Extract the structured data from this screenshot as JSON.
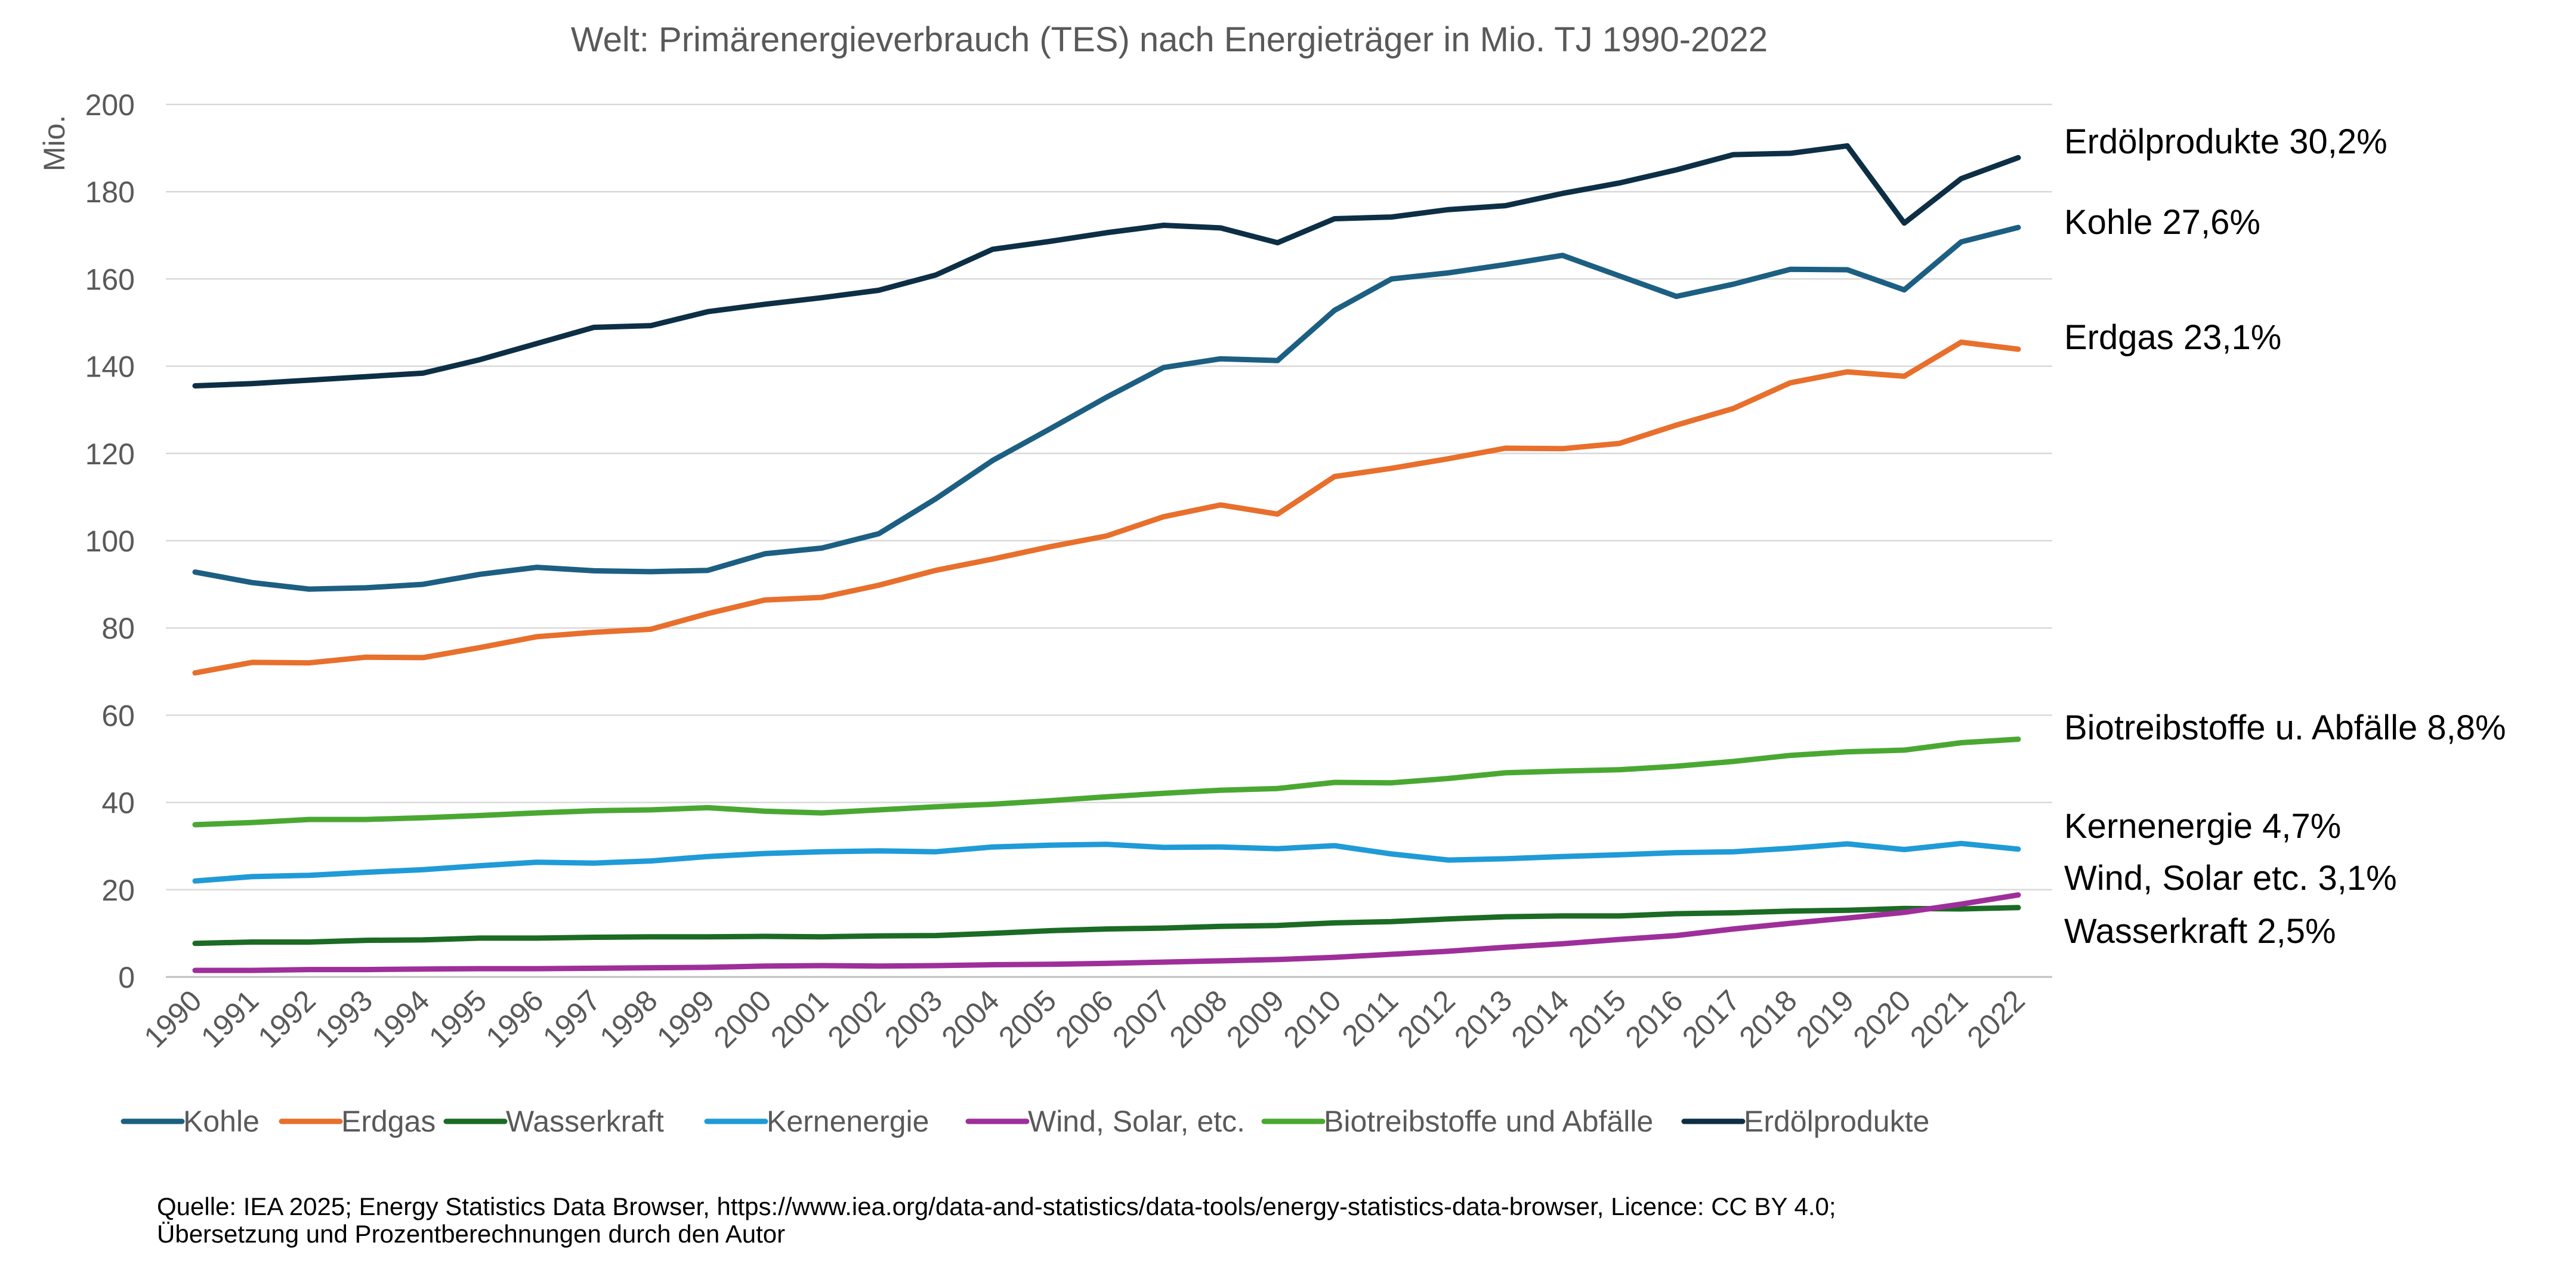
{
  "chart_data": {
    "type": "line",
    "title": "Welt: Primärenergieverbrauch (TES) nach Energieträger in Mio. TJ 1990-2022",
    "ylabel": "Mio.",
    "xlabel": "",
    "ylim": [
      0,
      200
    ],
    "yticks": [
      "0",
      "20",
      "40",
      "60",
      "80",
      "100",
      "120",
      "140",
      "160",
      "180",
      "200"
    ],
    "grid": true,
    "legend_position": "bottom",
    "x": [
      "1990",
      "1991",
      "1992",
      "1993",
      "1994",
      "1995",
      "1996",
      "1997",
      "1998",
      "1999",
      "2000",
      "2001",
      "2002",
      "2003",
      "2004",
      "2005",
      "2006",
      "2007",
      "2008",
      "2009",
      "2010",
      "2011",
      "2012",
      "2013",
      "2014",
      "2015",
      "2016",
      "2017",
      "2018",
      "2019",
      "2020",
      "2021",
      "2022"
    ],
    "series": [
      {
        "name": "Kohle",
        "color": "#1c5f82",
        "values": [
          92.8,
          90.4,
          88.9,
          89.2,
          90.0,
          92.3,
          93.9,
          93.1,
          92.9,
          93.2,
          97.0,
          98.3,
          101.6,
          109.6,
          118.4,
          125.6,
          132.9,
          139.7,
          141.7,
          141.3,
          152.8,
          160.0,
          161.4,
          163.3,
          165.4,
          160.7,
          156.0,
          158.8,
          162.2,
          162.1,
          157.5,
          168.5,
          171.8
        ]
      },
      {
        "name": "Erdgas",
        "color": "#e86f2c",
        "values": [
          69.7,
          72.1,
          72.0,
          73.3,
          73.2,
          75.5,
          78.0,
          79.0,
          79.7,
          83.3,
          86.4,
          87.0,
          89.8,
          93.2,
          95.8,
          98.6,
          101.1,
          105.5,
          108.2,
          106.1,
          114.7,
          116.6,
          118.8,
          121.2,
          121.1,
          122.3,
          126.5,
          130.3,
          136.2,
          138.7,
          137.7,
          145.5,
          143.9
        ]
      },
      {
        "name": "Wasserkraft",
        "color": "#1b6b24",
        "values": [
          7.7,
          8.0,
          8.0,
          8.4,
          8.5,
          8.9,
          8.9,
          9.1,
          9.2,
          9.2,
          9.3,
          9.2,
          9.4,
          9.5,
          10.0,
          10.6,
          11.0,
          11.2,
          11.6,
          11.8,
          12.4,
          12.7,
          13.3,
          13.8,
          14.0,
          14.0,
          14.5,
          14.7,
          15.1,
          15.3,
          15.7,
          15.6,
          15.9
        ]
      },
      {
        "name": "Kernenergie",
        "color": "#1f9bd7",
        "values": [
          22.0,
          23.0,
          23.3,
          24.0,
          24.6,
          25.5,
          26.3,
          26.1,
          26.6,
          27.6,
          28.3,
          28.7,
          28.9,
          28.7,
          29.8,
          30.2,
          30.4,
          29.7,
          29.8,
          29.4,
          30.1,
          28.2,
          26.8,
          27.1,
          27.6,
          28.0,
          28.5,
          28.7,
          29.5,
          30.5,
          29.2,
          30.6,
          29.3
        ]
      },
      {
        "name": "Wind, Solar, etc.",
        "color": "#9e2f9a",
        "values": [
          1.5,
          1.5,
          1.7,
          1.7,
          1.8,
          1.9,
          1.9,
          2.0,
          2.1,
          2.2,
          2.5,
          2.6,
          2.5,
          2.6,
          2.8,
          2.9,
          3.1,
          3.4,
          3.7,
          4.0,
          4.5,
          5.2,
          5.9,
          6.8,
          7.6,
          8.6,
          9.5,
          11.0,
          12.3,
          13.5,
          14.8,
          16.7,
          18.8
        ]
      },
      {
        "name": "Biotreibstoffe und Abfälle",
        "color": "#4aa832",
        "values": [
          34.9,
          35.4,
          36.1,
          36.1,
          36.5,
          37.0,
          37.6,
          38.1,
          38.3,
          38.8,
          38.0,
          37.6,
          38.3,
          39.0,
          39.6,
          40.4,
          41.3,
          42.1,
          42.8,
          43.2,
          44.6,
          44.5,
          45.5,
          46.8,
          47.2,
          47.5,
          48.3,
          49.4,
          50.8,
          51.6,
          52.0,
          53.7,
          54.5
        ]
      },
      {
        "name": "Erdölprodukte",
        "color": "#0d2f45",
        "values": [
          135.5,
          136.0,
          136.8,
          137.6,
          138.4,
          141.5,
          145.2,
          148.9,
          149.3,
          152.5,
          154.2,
          155.7,
          157.4,
          160.9,
          166.8,
          168.6,
          170.6,
          172.3,
          171.7,
          168.3,
          173.8,
          174.2,
          175.9,
          176.8,
          179.6,
          182.0,
          185.0,
          188.5,
          188.8,
          190.5,
          172.8,
          183.0,
          187.8
        ]
      }
    ],
    "end_labels": [
      {
        "series": "Erdölprodukte",
        "text": "Erdölprodukte 30,2%"
      },
      {
        "series": "Kohle",
        "text": "Kohle 27,6%"
      },
      {
        "series": "Erdgas",
        "text": "Erdgas 23,1%"
      },
      {
        "series": "Biotreibstoffe und Abfälle",
        "text": "Biotreibstoffe u. Abfälle 8,8%"
      },
      {
        "series": "Kernenergie",
        "text": "Kernenergie 4,7%"
      },
      {
        "series": "Wind, Solar, etc.",
        "text": "Wind, Solar etc. 3,1%"
      },
      {
        "series": "Wasserkraft",
        "text": "Wasserkraft 2,5%"
      }
    ],
    "source_lines": [
      "Quelle: IEA 2025; Energy Statistics Data Browser, https://www.iea.org/data-and-statistics/data-tools/energy-statistics-data-browser, Licence: CC BY 4.0;",
      "Übersetzung und Prozentberechnungen durch den Autor"
    ]
  }
}
